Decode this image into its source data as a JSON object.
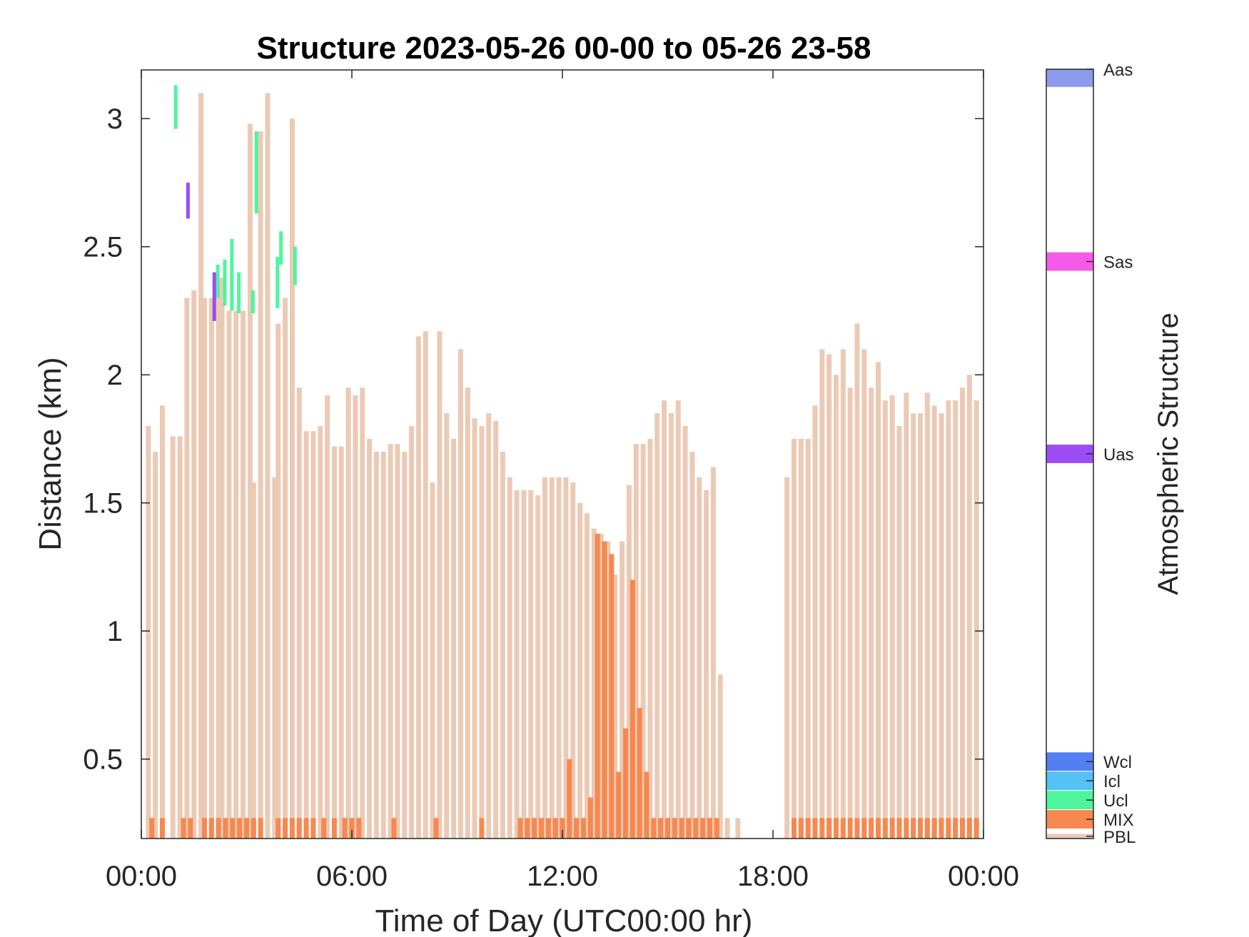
{
  "chart_data": {
    "type": "bar",
    "title": "Structure 2023-05-26 00-00 to 05-26 23-58",
    "xlabel": "Time of Day (UTC00:00 hr)",
    "ylabel": "Distance (km)",
    "xlim": [
      0,
      24
    ],
    "ylim": [
      0.19,
      3.19
    ],
    "xticks": [
      0,
      6,
      12,
      18,
      24
    ],
    "xtick_labels": [
      "00:00",
      "06:00",
      "12:00",
      "18:00",
      "00:00"
    ],
    "yticks": [
      0.5,
      1,
      1.5,
      2,
      2.5,
      3
    ],
    "ytick_labels": [
      "0.5",
      "1",
      "1.5",
      "2",
      "2.5",
      "3"
    ],
    "grid": false,
    "colorbar": {
      "label": "Atmospheric Structure",
      "classes": [
        {
          "name": "Aas",
          "color": "#8c9aeb"
        },
        {
          "name": "Sas",
          "color": "#f75ae8"
        },
        {
          "name": "Uas",
          "color": "#9b4cf4"
        },
        {
          "name": "Wcl",
          "color": "#537ff2"
        },
        {
          "name": "Icl",
          "color": "#55c2f5"
        },
        {
          "name": "Ucl",
          "color": "#4ff59c"
        },
        {
          "name": "MIX",
          "color": "#f7884f"
        },
        {
          "name": "PBL",
          "color": "#ebcab5"
        }
      ]
    },
    "series": [
      {
        "name": "PBL",
        "color": "#ebcab5",
        "x": [
          0.2,
          0.4,
          0.6,
          0.9,
          1.1,
          1.3,
          1.5,
          1.7,
          1.8,
          2.0,
          2.2,
          2.3,
          2.5,
          2.7,
          2.9,
          3.1,
          3.2,
          3.4,
          3.6,
          3.8,
          3.9,
          4.1,
          4.3,
          4.5,
          4.7,
          4.9,
          5.1,
          5.3,
          5.5,
          5.7,
          5.9,
          6.1,
          6.3,
          6.5,
          6.7,
          6.9,
          7.1,
          7.3,
          7.5,
          7.7,
          7.9,
          8.1,
          8.3,
          8.5,
          8.7,
          8.9,
          9.1,
          9.3,
          9.5,
          9.7,
          9.9,
          10.1,
          10.3,
          10.5,
          10.7,
          10.9,
          11.1,
          11.3,
          11.5,
          11.7,
          11.9,
          12.1,
          12.3,
          12.5,
          12.7,
          12.9,
          13.1,
          13.3,
          13.5,
          13.7,
          13.9,
          14.1,
          14.3,
          14.5,
          14.7,
          14.9,
          15.1,
          15.3,
          15.5,
          15.7,
          15.9,
          16.1,
          16.3,
          16.5,
          16.7,
          17.0,
          18.4,
          18.6,
          18.8,
          19.0,
          19.2,
          19.4,
          19.6,
          19.8,
          20.0,
          20.2,
          20.4,
          20.6,
          20.8,
          21.0,
          21.2,
          21.4,
          21.6,
          21.8,
          22.0,
          22.2,
          22.4,
          22.6,
          22.8,
          23.0,
          23.2,
          23.4,
          23.6,
          23.8
        ],
        "values": [
          1.8,
          1.7,
          1.88,
          1.76,
          1.76,
          2.3,
          2.33,
          3.1,
          2.3,
          2.3,
          2.35,
          2.38,
          2.25,
          2.25,
          2.25,
          2.98,
          1.58,
          2.95,
          3.1,
          1.6,
          2.2,
          2.3,
          3.0,
          1.95,
          1.78,
          1.78,
          1.8,
          1.92,
          1.72,
          1.72,
          1.95,
          1.92,
          1.95,
          1.75,
          1.7,
          1.7,
          1.73,
          1.73,
          1.7,
          1.8,
          2.15,
          2.17,
          1.58,
          2.17,
          1.85,
          1.75,
          2.1,
          1.95,
          1.83,
          1.8,
          1.85,
          1.82,
          1.7,
          1.6,
          1.55,
          1.55,
          1.55,
          1.53,
          1.6,
          1.6,
          1.6,
          1.6,
          1.58,
          1.5,
          1.46,
          1.4,
          1.38,
          1.35,
          1.22,
          1.35,
          1.57,
          1.73,
          1.73,
          1.75,
          1.85,
          1.9,
          1.85,
          1.9,
          1.8,
          1.7,
          1.6,
          1.55,
          1.64,
          0.83,
          0.27,
          0.27,
          1.6,
          1.75,
          1.75,
          1.75,
          1.88,
          2.1,
          2.08,
          2.0,
          2.1,
          1.95,
          2.2,
          2.1,
          1.95,
          2.05,
          1.9,
          1.92,
          1.8,
          1.93,
          1.85,
          1.85,
          1.93,
          1.88,
          1.85,
          1.9,
          1.9,
          1.95,
          2.0,
          1.9
        ]
      },
      {
        "name": "MIX",
        "color": "#f7884f",
        "x": [
          0.3,
          0.6,
          1.2,
          1.4,
          1.8,
          2.0,
          2.2,
          2.4,
          2.6,
          2.8,
          3.0,
          3.2,
          3.4,
          3.9,
          4.1,
          4.3,
          4.5,
          4.7,
          4.9,
          5.2,
          5.5,
          5.8,
          6.0,
          6.2,
          7.2,
          8.4,
          9.7,
          10.8,
          11.0,
          11.2,
          11.4,
          11.6,
          11.8,
          12.0,
          12.2,
          12.4,
          12.6,
          12.8,
          13.0,
          13.2,
          13.4,
          13.6,
          13.8,
          14.0,
          14.2,
          14.4,
          14.6,
          14.8,
          15.0,
          15.2,
          15.4,
          15.6,
          15.8,
          16.0,
          16.2,
          16.4,
          18.6,
          18.8,
          19.0,
          19.2,
          19.4,
          19.6,
          19.8,
          20.0,
          20.2,
          20.4,
          20.6,
          20.8,
          21.0,
          21.2,
          21.4,
          21.6,
          21.8,
          22.0,
          22.2,
          22.4,
          22.6,
          22.8,
          23.0,
          23.2,
          23.4,
          23.6,
          23.8
        ],
        "values": [
          0.27,
          0.27,
          0.27,
          0.27,
          0.27,
          0.27,
          0.27,
          0.27,
          0.27,
          0.27,
          0.27,
          0.27,
          0.27,
          0.27,
          0.27,
          0.27,
          0.27,
          0.27,
          0.27,
          0.27,
          0.27,
          0.27,
          0.27,
          0.27,
          0.27,
          0.27,
          0.27,
          0.27,
          0.27,
          0.27,
          0.27,
          0.27,
          0.27,
          0.27,
          0.5,
          0.27,
          0.27,
          0.35,
          1.38,
          1.35,
          1.3,
          0.45,
          0.62,
          1.2,
          0.7,
          0.45,
          0.27,
          0.27,
          0.27,
          0.27,
          0.27,
          0.27,
          0.27,
          0.27,
          0.27,
          0.27,
          0.27,
          0.27,
          0.27,
          0.27,
          0.27,
          0.27,
          0.27,
          0.27,
          0.27,
          0.27,
          0.27,
          0.27,
          0.27,
          0.27,
          0.27,
          0.27,
          0.27,
          0.27,
          0.27,
          0.27,
          0.27,
          0.27,
          0.27,
          0.27,
          0.27,
          0.27,
          0.27
        ]
      },
      {
        "name": "Ucl",
        "color": "#4ff59c",
        "segments": [
          {
            "x": 1.0,
            "y0": 2.96,
            "y1": 3.13
          },
          {
            "x": 2.2,
            "y0": 2.3,
            "y1": 2.43
          },
          {
            "x": 2.4,
            "y0": 2.27,
            "y1": 2.45
          },
          {
            "x": 2.6,
            "y0": 2.25,
            "y1": 2.53
          },
          {
            "x": 2.8,
            "y0": 2.24,
            "y1": 2.4
          },
          {
            "x": 3.2,
            "y0": 2.24,
            "y1": 2.33
          },
          {
            "x": 3.3,
            "y0": 2.63,
            "y1": 2.95
          },
          {
            "x": 3.9,
            "y0": 2.26,
            "y1": 2.46
          },
          {
            "x": 4.0,
            "y0": 2.43,
            "y1": 2.56
          },
          {
            "x": 4.4,
            "y0": 2.35,
            "y1": 2.5
          }
        ]
      },
      {
        "name": "Uas",
        "color": "#9b4cf4",
        "segments": [
          {
            "x": 1.35,
            "y0": 2.61,
            "y1": 2.75
          },
          {
            "x": 2.1,
            "y0": 2.21,
            "y1": 2.4
          }
        ]
      }
    ]
  }
}
